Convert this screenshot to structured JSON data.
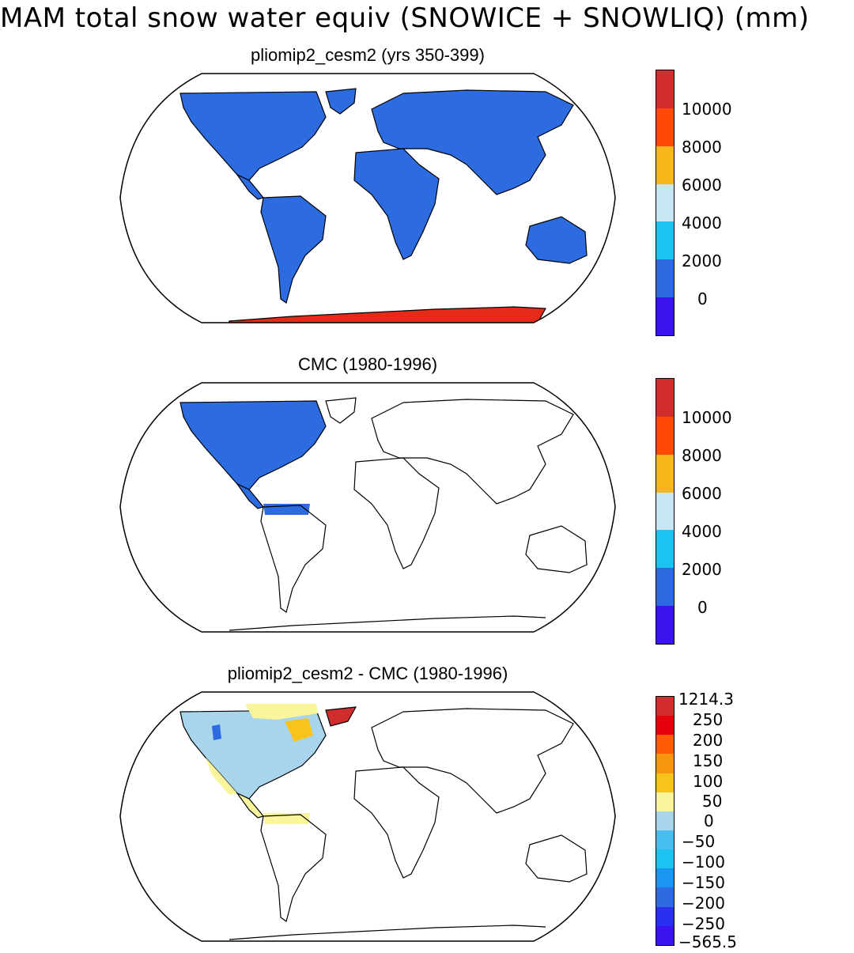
{
  "title": "MAM total snow water equiv (SNOWICE + SNOWLIQ) (mm)",
  "panels": [
    {
      "title": "pliomip2_cesm2 (yrs 350-399)",
      "colorbar": {
        "colors": [
          "#3c14f0",
          "#2d6be0",
          "#1cc2f0",
          "#c9e6f4",
          "#f8b71a",
          "#ff4a05",
          "#d22d2d"
        ],
        "labels": [
          "0",
          "2000",
          "4000",
          "6000",
          "8000",
          "10000"
        ]
      },
      "fill": {
        "land": "#2d6be0",
        "antarctica": "#e52a1a"
      }
    },
    {
      "title": "CMC (1980-1996)",
      "colorbar": {
        "colors": [
          "#3c14f0",
          "#2d6be0",
          "#1cc2f0",
          "#c9e6f4",
          "#f8b71a",
          "#ff4a05",
          "#d22d2d"
        ],
        "labels": [
          "0",
          "2000",
          "4000",
          "6000",
          "8000",
          "10000"
        ]
      },
      "fill": {
        "land": "#2d6be0"
      }
    },
    {
      "title": "pliomip2_cesm2 - CMC (1980-1996)",
      "colorbar": {
        "colors": [
          "#3c14f0",
          "#2a30f0",
          "#2d6be0",
          "#1c95f0",
          "#1cc2f0",
          "#47bdf0",
          "#a8d5ec",
          "#f9f59a",
          "#f8c31a",
          "#f8960e",
          "#ff5a05",
          "#e6000a",
          "#d22d2d"
        ],
        "labels": [
          "-565.5",
          "-250",
          "-200",
          "-150",
          "-100",
          "-50",
          "0",
          "50",
          "100",
          "150",
          "200",
          "250",
          "1214.3"
        ]
      },
      "fill": {
        "main": "#a8d5ec",
        "positive": "#f9f59a",
        "greenland": "#d22d2d",
        "orange": "#f8c31a",
        "deep": "#2d6be0"
      }
    }
  ]
}
